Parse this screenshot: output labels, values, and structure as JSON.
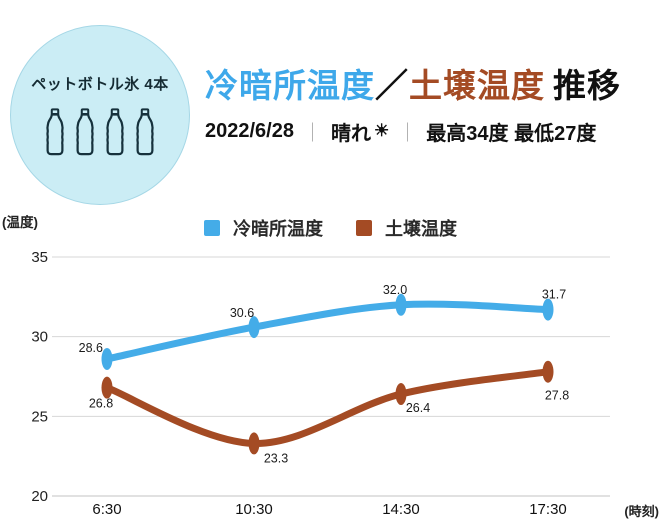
{
  "badge": {
    "label": "ペットボトル氷 4本",
    "bottle_count": 4,
    "bg_color": "#cbedf5"
  },
  "header": {
    "title_cool": "冷暗所温度",
    "title_slash": "／",
    "title_soil": "土壌温度",
    "title_suffix": "推移",
    "date": "2022/6/28",
    "separator": "｜",
    "weather": "晴れ",
    "sun_icon": "☀",
    "temps": "最高34度 最低27度",
    "title_cool_color": "#3ea8ea",
    "title_soil_color": "#a44b24"
  },
  "chart_data": {
    "type": "line",
    "title": "冷暗所温度／土壌温度 推移",
    "categories": [
      "6:30",
      "10:30",
      "14:30",
      "17:30"
    ],
    "series": [
      {
        "name": "冷暗所温度",
        "color": "#44ace8",
        "values": [
          28.6,
          30.6,
          32.0,
          31.7
        ],
        "labels": [
          "28.6",
          "30.6",
          "32.0",
          "31.7"
        ]
      },
      {
        "name": "土壌温度",
        "color": "#a44b24",
        "values": [
          26.8,
          23.3,
          26.4,
          27.8
        ],
        "labels": [
          "26.8",
          "23.3",
          "26.4",
          "27.8"
        ]
      }
    ],
    "ylabel": "(温度)",
    "xlabel": "(時刻)",
    "yticks": [
      35,
      30,
      25,
      20
    ],
    "ylim": [
      20,
      35
    ],
    "grid": true,
    "gridline_color": "#d7d7d7",
    "axis_line_color": "#c3c3c3",
    "legend_position": "top"
  }
}
